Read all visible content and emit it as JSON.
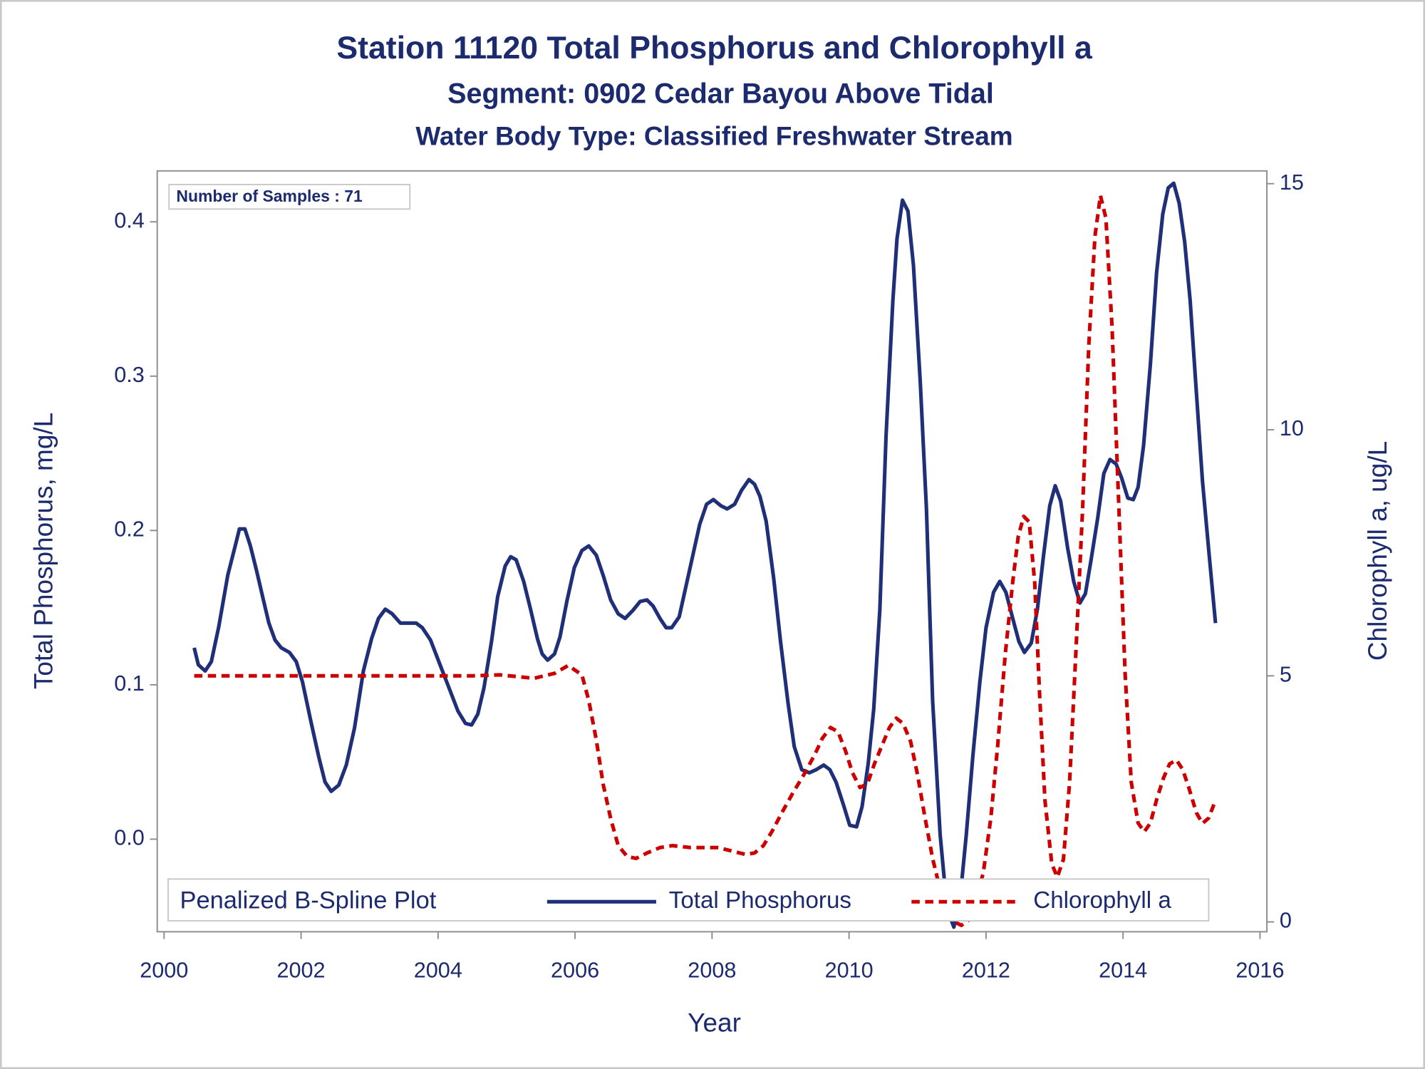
{
  "chart_data": {
    "type": "line",
    "title": "Station 11120  Total Phosphorus and Chlorophyll a",
    "subtitle": "Segment: 0902  Cedar Bayou Above Tidal",
    "subtitle2": "Water Body Type: Classified Freshwater Stream",
    "annotation": "Number of Samples : 71",
    "legend_title": "Penalized B-Spline Plot",
    "legend": "bottom",
    "xlabel": "Year",
    "ylabel": "Total Phosphorus, mg/L",
    "y2label": "Chlorophyll a, ug/L",
    "xlim": [
      1999.9,
      2016.1
    ],
    "xticks": [
      2000,
      2002,
      2004,
      2006,
      2008,
      2010,
      2012,
      2014,
      2016
    ],
    "ylim": [
      -0.06,
      0.433
    ],
    "yticks": [
      {
        "value": 0,
        "label": "0.0"
      },
      0.1,
      0.2,
      0.3,
      0.4
    ],
    "y2lim": [
      -0.2,
      15.26
    ],
    "y2ticks": [
      0,
      5,
      10,
      15
    ],
    "series": [
      {
        "name": "Total Phosphorus",
        "color": "#1f2f78",
        "dash": false,
        "x": [
          2000.44,
          2000.5,
          2000.6,
          2000.69,
          2000.8,
          2000.93,
          2001.05,
          2001.1,
          2001.18,
          2001.26,
          2001.35,
          2001.45,
          2001.53,
          2001.62,
          2001.71,
          2001.83,
          2001.93,
          2002.02,
          2002.14,
          2002.26,
          2002.35,
          2002.44,
          2002.55,
          2002.66,
          2002.78,
          2002.91,
          2003.03,
          2003.13,
          2003.23,
          2003.33,
          2003.45,
          2003.57,
          2003.68,
          2003.77,
          2003.89,
          2004.02,
          2004.16,
          2004.29,
          2004.4,
          2004.49,
          2004.58,
          2004.67,
          2004.78,
          2004.87,
          2004.98,
          2005.06,
          2005.14,
          2005.25,
          2005.35,
          2005.45,
          2005.52,
          2005.6,
          2005.7,
          2005.78,
          2005.88,
          2005.99,
          2006.1,
          2006.2,
          2006.31,
          2006.41,
          2006.52,
          2006.63,
          2006.73,
          2006.84,
          2006.95,
          2007.05,
          2007.14,
          2007.24,
          2007.33,
          2007.41,
          2007.52,
          2007.61,
          2007.72,
          2007.82,
          2007.92,
          2008.02,
          2008.13,
          2008.22,
          2008.33,
          2008.43,
          2008.54,
          2008.62,
          2008.7,
          2008.79,
          2008.9,
          2009.0,
          2009.11,
          2009.2,
          2009.31,
          2009.42,
          2009.52,
          2009.63,
          2009.72,
          2009.81,
          2009.92,
          2010.01,
          2010.11,
          2010.19,
          2010.28,
          2010.36,
          2010.45,
          2010.54,
          2010.64,
          2010.7,
          2010.78,
          2010.86,
          2010.94,
          2011.04,
          2011.13,
          2011.22,
          2011.33,
          2011.43,
          2011.53,
          2011.62,
          2011.71,
          2011.81,
          2011.91,
          2012.0,
          2012.11,
          2012.2,
          2012.29,
          2012.39,
          2012.48,
          2012.56,
          2012.66,
          2012.75,
          2012.84,
          2012.93,
          2013.01,
          2013.09,
          2013.19,
          2013.28,
          2013.37,
          2013.45,
          2013.53,
          2013.63,
          2013.72,
          2013.81,
          2013.9,
          2013.98,
          2014.07,
          2014.15,
          2014.22,
          2014.3,
          2014.4,
          2014.49,
          2014.58,
          2014.66,
          2014.74,
          2014.82,
          2014.9,
          2014.98,
          2015.07,
          2015.16,
          2015.26,
          2015.35
        ],
        "values": [
          0.124,
          0.113,
          0.109,
          0.115,
          0.138,
          0.171,
          0.192,
          0.201,
          0.201,
          0.19,
          0.174,
          0.155,
          0.14,
          0.129,
          0.124,
          0.121,
          0.115,
          0.102,
          0.077,
          0.053,
          0.037,
          0.031,
          0.035,
          0.048,
          0.072,
          0.109,
          0.13,
          0.143,
          0.149,
          0.146,
          0.14,
          0.14,
          0.14,
          0.137,
          0.129,
          0.114,
          0.098,
          0.083,
          0.075,
          0.074,
          0.081,
          0.098,
          0.128,
          0.157,
          0.177,
          0.183,
          0.181,
          0.167,
          0.149,
          0.13,
          0.12,
          0.116,
          0.12,
          0.131,
          0.154,
          0.176,
          0.187,
          0.19,
          0.184,
          0.171,
          0.155,
          0.146,
          0.143,
          0.148,
          0.154,
          0.155,
          0.151,
          0.143,
          0.137,
          0.137,
          0.144,
          0.162,
          0.184,
          0.204,
          0.217,
          0.22,
          0.216,
          0.214,
          0.217,
          0.226,
          0.233,
          0.23,
          0.222,
          0.206,
          0.169,
          0.128,
          0.088,
          0.06,
          0.045,
          0.043,
          0.045,
          0.048,
          0.045,
          0.037,
          0.022,
          0.009,
          0.008,
          0.021,
          0.049,
          0.084,
          0.149,
          0.261,
          0.349,
          0.389,
          0.414,
          0.407,
          0.372,
          0.296,
          0.214,
          0.09,
          0.003,
          -0.045,
          -0.057,
          -0.039,
          0.002,
          0.055,
          0.102,
          0.137,
          0.16,
          0.167,
          0.16,
          0.143,
          0.128,
          0.121,
          0.127,
          0.149,
          0.184,
          0.216,
          0.229,
          0.219,
          0.189,
          0.167,
          0.153,
          0.159,
          0.18,
          0.208,
          0.237,
          0.246,
          0.243,
          0.234,
          0.221,
          0.22,
          0.228,
          0.255,
          0.308,
          0.367,
          0.405,
          0.422,
          0.425,
          0.412,
          0.387,
          0.349,
          0.29,
          0.232,
          0.183,
          0.14
        ]
      },
      {
        "name": "Chlorophyll a",
        "color": "#cc0000",
        "dash": true,
        "axis": "y2",
        "x": [
          2000.44,
          2001.5,
          2002.5,
          2003.5,
          2004.5,
          2004.9,
          2005.4,
          2005.7,
          2005.9,
          2006.1,
          2006.2,
          2006.31,
          2006.41,
          2006.52,
          2006.63,
          2006.76,
          2006.89,
          2007.05,
          2007.24,
          2007.42,
          2007.69,
          2008.09,
          2008.29,
          2008.49,
          2008.62,
          2008.75,
          2008.88,
          2009.02,
          2009.18,
          2009.34,
          2009.5,
          2009.61,
          2009.73,
          2009.84,
          2009.95,
          2010.05,
          2010.16,
          2010.27,
          2010.37,
          2010.48,
          2010.59,
          2010.69,
          2010.79,
          2010.9,
          2011.0,
          2011.11,
          2011.22,
          2011.33,
          2011.43,
          2011.54,
          2011.64,
          2011.75,
          2011.85,
          2011.96,
          2012.07,
          2012.17,
          2012.28,
          2012.39,
          2012.47,
          2012.55,
          2012.63,
          2012.71,
          2012.78,
          2012.86,
          2012.96,
          2013.04,
          2013.13,
          2013.22,
          2013.31,
          2013.41,
          2013.5,
          2013.59,
          2013.67,
          2013.75,
          2013.84,
          2013.94,
          2014.03,
          2014.12,
          2014.22,
          2014.31,
          2014.4,
          2014.49,
          2014.59,
          2014.68,
          2014.78,
          2014.87,
          2014.96,
          2015.07,
          2015.16,
          2015.25,
          2015.35
        ],
        "values": [
          5.0,
          5.0,
          5.0,
          5.0,
          5.0,
          5.02,
          4.95,
          5.05,
          5.21,
          5.02,
          4.5,
          3.7,
          2.8,
          2.1,
          1.55,
          1.33,
          1.29,
          1.4,
          1.51,
          1.55,
          1.51,
          1.51,
          1.44,
          1.37,
          1.4,
          1.55,
          1.85,
          2.22,
          2.62,
          2.99,
          3.4,
          3.73,
          3.95,
          3.86,
          3.47,
          3.03,
          2.73,
          2.81,
          3.21,
          3.58,
          3.95,
          4.14,
          4.03,
          3.66,
          2.99,
          2.11,
          1.29,
          0.66,
          0.18,
          0.0,
          -0.07,
          0.04,
          0.44,
          1.0,
          2.11,
          3.58,
          5.43,
          6.91,
          7.83,
          8.24,
          8.13,
          6.91,
          4.69,
          2.47,
          1.18,
          0.91,
          1.27,
          2.84,
          5.43,
          8.39,
          11.71,
          13.93,
          14.76,
          14.3,
          12.08,
          8.39,
          5.06,
          2.84,
          2.01,
          1.83,
          2.01,
          2.48,
          2.92,
          3.21,
          3.29,
          3.1,
          2.73,
          2.22,
          2.0,
          2.11,
          2.47
        ]
      }
    ]
  }
}
